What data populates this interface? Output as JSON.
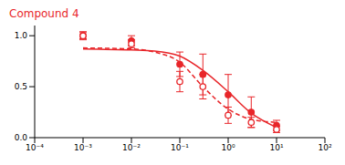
{
  "chart_data": {
    "type": "scatter",
    "title": "Compound 4",
    "color": "#e8262a",
    "log": "x",
    "grid": false,
    "xlim": [
      0.0001,
      100
    ],
    "xticks": [
      {
        "value": 0.0001,
        "label": "10⁻⁴"
      },
      {
        "value": 0.001,
        "label": "10⁻³"
      },
      {
        "value": 0.01,
        "label": "10⁻²"
      },
      {
        "value": 0.1,
        "label": "10⁻¹"
      },
      {
        "value": 1,
        "label": "10⁰"
      },
      {
        "value": 10,
        "label": "10¹"
      },
      {
        "value": 100,
        "label": "10²"
      }
    ],
    "ylim": [
      0,
      1.1
    ],
    "yticks": [
      {
        "value": 0,
        "label": "0.0"
      },
      {
        "value": 0.5,
        "label": "0.5"
      },
      {
        "value": 1,
        "label": "1.0"
      }
    ],
    "series": [
      {
        "type": "scatter",
        "marker": "filled",
        "x": [
          0.001,
          0.01,
          0.1,
          0.3,
          1,
          3,
          10
        ],
        "values": [
          1.0,
          0.95,
          0.72,
          0.62,
          0.42,
          0.25,
          0.12
        ],
        "error": [
          0.04,
          0.05,
          0.12,
          0.2,
          0.2,
          0.15,
          0.05
        ]
      },
      {
        "type": "scatter",
        "marker": "open",
        "x": [
          0.001,
          0.01,
          0.1,
          0.3,
          1,
          3,
          10
        ],
        "values": [
          1.0,
          0.92,
          0.55,
          0.5,
          0.22,
          0.15,
          0.08
        ],
        "error": [
          0.03,
          0.04,
          0.1,
          0.12,
          0.08,
          0.05,
          0.03
        ]
      },
      {
        "type": "line",
        "line_style": "solid",
        "x": [
          0.001,
          0.01,
          0.03,
          0.1,
          0.3,
          1,
          3,
          10
        ],
        "values": [
          0.87,
          0.86,
          0.85,
          0.8,
          0.66,
          0.45,
          0.24,
          0.1
        ]
      },
      {
        "type": "line",
        "line_style": "dashed",
        "x": [
          0.001,
          0.01,
          0.03,
          0.1,
          0.3,
          1,
          3,
          10
        ],
        "values": [
          0.88,
          0.87,
          0.84,
          0.74,
          0.5,
          0.28,
          0.18,
          0.15
        ]
      }
    ]
  }
}
